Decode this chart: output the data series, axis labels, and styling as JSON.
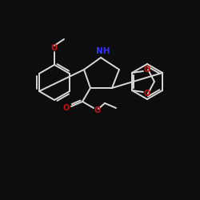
{
  "bg_color": "#0d0d0d",
  "bond_color": "#d8d8d8",
  "bond_width": 1.4,
  "N_color": "#3333ff",
  "O_color": "#cc1111",
  "figsize": [
    2.5,
    2.5
  ],
  "dpi": 100,
  "xlim": [
    0,
    250
  ],
  "ylim": [
    0,
    250
  ],
  "NH_text": "NH",
  "O_text": "O",
  "NH_fontsize": 7.5,
  "O_fontsize": 7.0
}
